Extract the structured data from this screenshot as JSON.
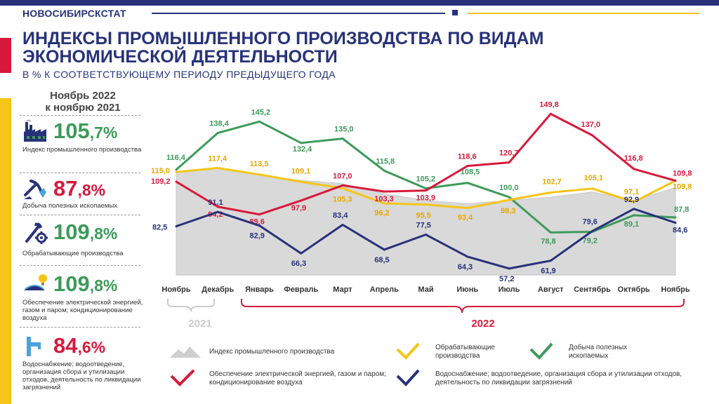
{
  "header": {
    "org": "НОВОСИБИРСКСТАТ",
    "title_line1": "ИНДЕКСЫ ПРОМЫШЛЕННОГО ПРОИЗВОДСТВА ПО ВИДАМ",
    "title_line2": "ЭКОНОМИЧЕСКОЙ ДЕЯТЕЛЬНОСТИ",
    "subtitle": "В % К СООТВЕТСТВУЮЩЕМУ ПЕРИОДУ ПРЕДЫДУЩЕГО ГОДА"
  },
  "colors": {
    "navy": "#27327a",
    "green": "#3d9a5a",
    "red": "#d71a3b",
    "yellow": "#f5c518",
    "gray_area": "#d9d9d9"
  },
  "panel": {
    "title_line1": "Ноябрь 2022",
    "title_line2": "к ноябрю 2021",
    "kpis": [
      {
        "int": "105",
        "dec": ",7%",
        "color": "#3d9a5a",
        "desc": "Индекс промышленного производства",
        "icon": "factory-icon"
      },
      {
        "int": "87",
        "dec": ",8%",
        "color": "#d71a3b",
        "desc": "Добыча полезных ископаемых",
        "icon": "mining-icon"
      },
      {
        "int": "109",
        "dec": ",8%",
        "color": "#3d9a5a",
        "desc": "Обрабатывающие производства",
        "icon": "tools-icon"
      },
      {
        "int": "109",
        "dec": ",8%",
        "color": "#3d9a5a",
        "desc": "Обеспечение электрической энергией, газом и паром; кондиционирование воздуха",
        "icon": "energy-icon"
      },
      {
        "int": "84",
        "dec": ",6%",
        "color": "#d71a3b",
        "desc": "Водоснабжение; водоотведение, организация сбора и утилизации отходов, деятельность по ликвидации загрязнений",
        "icon": "water-tap-icon"
      }
    ]
  },
  "chart_data": {
    "type": "line",
    "categories": [
      "Ноябрь",
      "Декабрь",
      "Январь",
      "Февраль",
      "Март",
      "Апрель",
      "Май",
      "Июнь",
      "Июль",
      "Август",
      "Сентябрь",
      "Октябрь",
      "Ноябрь"
    ],
    "year_labels": [
      "2021",
      "2022"
    ],
    "series": [
      {
        "name": "Индекс промышленного производства",
        "style": "area",
        "color": "#d9d9d9",
        "values": [
          115,
          117.5,
          113,
          110,
          108,
          102,
          98,
          96,
          98,
          100,
          103,
          98,
          105.7
        ],
        "labels": []
      },
      {
        "name": "Добыча полезных ископаемых",
        "style": "line",
        "color": "#3d9a5a",
        "values": [
          116.4,
          138.4,
          145.2,
          132.4,
          135.0,
          115.8,
          105.2,
          108.5,
          100.0,
          78.8,
          79.2,
          89.1,
          87.8
        ],
        "labels": [
          "116,4",
          "138,4",
          "145,2",
          "132,4",
          "135,0",
          "115,8",
          "105,2",
          "108,5",
          "100,0",
          "78,8",
          "79,2",
          "89,1",
          "87,8"
        ]
      },
      {
        "name": "Обрабатывающие производства",
        "style": "line",
        "color": "#f5c518",
        "values": [
          115.0,
          117.4,
          113.5,
          109.1,
          105.3,
          96.2,
          95.5,
          93.4,
          98.3,
          102.7,
          105.1,
          97.1,
          109.8
        ],
        "labels": [
          "115,0",
          "117,4",
          "113,5",
          "109,1",
          "105,3",
          "96,2",
          "95,5",
          "93,4",
          "98,3",
          "102,7",
          "105,1",
          "97,1",
          "109,8"
        ]
      },
      {
        "name": "Обеспечение электрической энергией, газом и паром; кондиционирование воздуха",
        "style": "line",
        "color": "#d71a3b",
        "values": [
          109.2,
          94.2,
          89.6,
          97.9,
          107.0,
          103.3,
          103.9,
          118.6,
          120.7,
          149.8,
          137.0,
          116.8,
          109.8
        ],
        "labels": [
          "109,2",
          "94,2",
          "89,6",
          "97,9",
          "107,0",
          "103,3",
          "103,9",
          "118,6",
          "120,7",
          "149,8",
          "137,0",
          "116,8",
          "109,8"
        ]
      },
      {
        "name": "Водоснабжение; водоотведение, организация сбора и утилизации отходов, деятельность по ликвидации загрязнений",
        "style": "line",
        "color": "#27327a",
        "values": [
          82.5,
          91.1,
          82.9,
          66.3,
          83.4,
          68.5,
          77.5,
          64.3,
          57.2,
          61.9,
          79.6,
          92.9,
          84.6
        ],
        "labels": [
          "82,5",
          "91,1",
          "82,9",
          "66,3",
          "83,4",
          "68,5",
          "77,5",
          "64,3",
          "57,2",
          "61,9",
          "79,6",
          "92,9",
          "84,6"
        ]
      }
    ],
    "ylim": [
      50,
      155
    ],
    "legend": [
      {
        "text": "Индекс промышленного производства",
        "color": "#d9d9d9",
        "icon": "area-legend-icon"
      },
      {
        "text": "Обрабатывающие производства",
        "color": "#f5c518",
        "icon": "line-legend-icon"
      },
      {
        "text": "Добыча полезных ископаемых",
        "color": "#3d9a5a",
        "icon": "line-legend-icon"
      },
      {
        "text": "Обеспечение электрической энергией, газом и паром; кондиционирование воздуха",
        "color": "#d71a3b",
        "icon": "line-legend-icon"
      },
      {
        "text": "Водоснабжение; водоотведение, организация сбора и утилизации отходов, деятельность по ликвидации загрязнений",
        "color": "#27327a",
        "icon": "line-legend-icon"
      }
    ]
  }
}
